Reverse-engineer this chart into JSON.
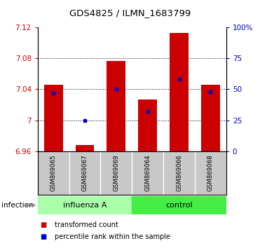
{
  "title": "GDS4825 / ILMN_1683799",
  "samples": [
    "GSM869065",
    "GSM869067",
    "GSM869069",
    "GSM869064",
    "GSM869066",
    "GSM869068"
  ],
  "group_labels": [
    "influenza A",
    "control"
  ],
  "bar_bottom": 6.96,
  "transformed_counts": [
    7.046,
    6.968,
    7.077,
    7.027,
    7.113,
    7.046
  ],
  "percentile_ranks": [
    47,
    25,
    50,
    32,
    58,
    48
  ],
  "ylim_left": [
    6.96,
    7.12
  ],
  "ylim_right": [
    0,
    100
  ],
  "yticks_left": [
    6.96,
    7.0,
    7.04,
    7.08,
    7.12
  ],
  "yticks_right": [
    0,
    25,
    50,
    75,
    100
  ],
  "ytick_labels_left": [
    "6.96",
    "7",
    "7.04",
    "7.08",
    "7.12"
  ],
  "ytick_labels_right": [
    "0",
    "25",
    "50",
    "75",
    "100%"
  ],
  "bar_color": "#CC0000",
  "dot_color": "#0000CC",
  "bar_width": 0.6,
  "infection_label": "infection",
  "legend_bar_label": "transformed count",
  "legend_dot_label": "percentile rank within the sample",
  "left_color": "#CC0000",
  "right_color": "#0000BB",
  "influenza_color": "#aaffaa",
  "control_color": "#44ee44",
  "sample_bg_color": "#c8c8c8",
  "grid_color": "#555555"
}
